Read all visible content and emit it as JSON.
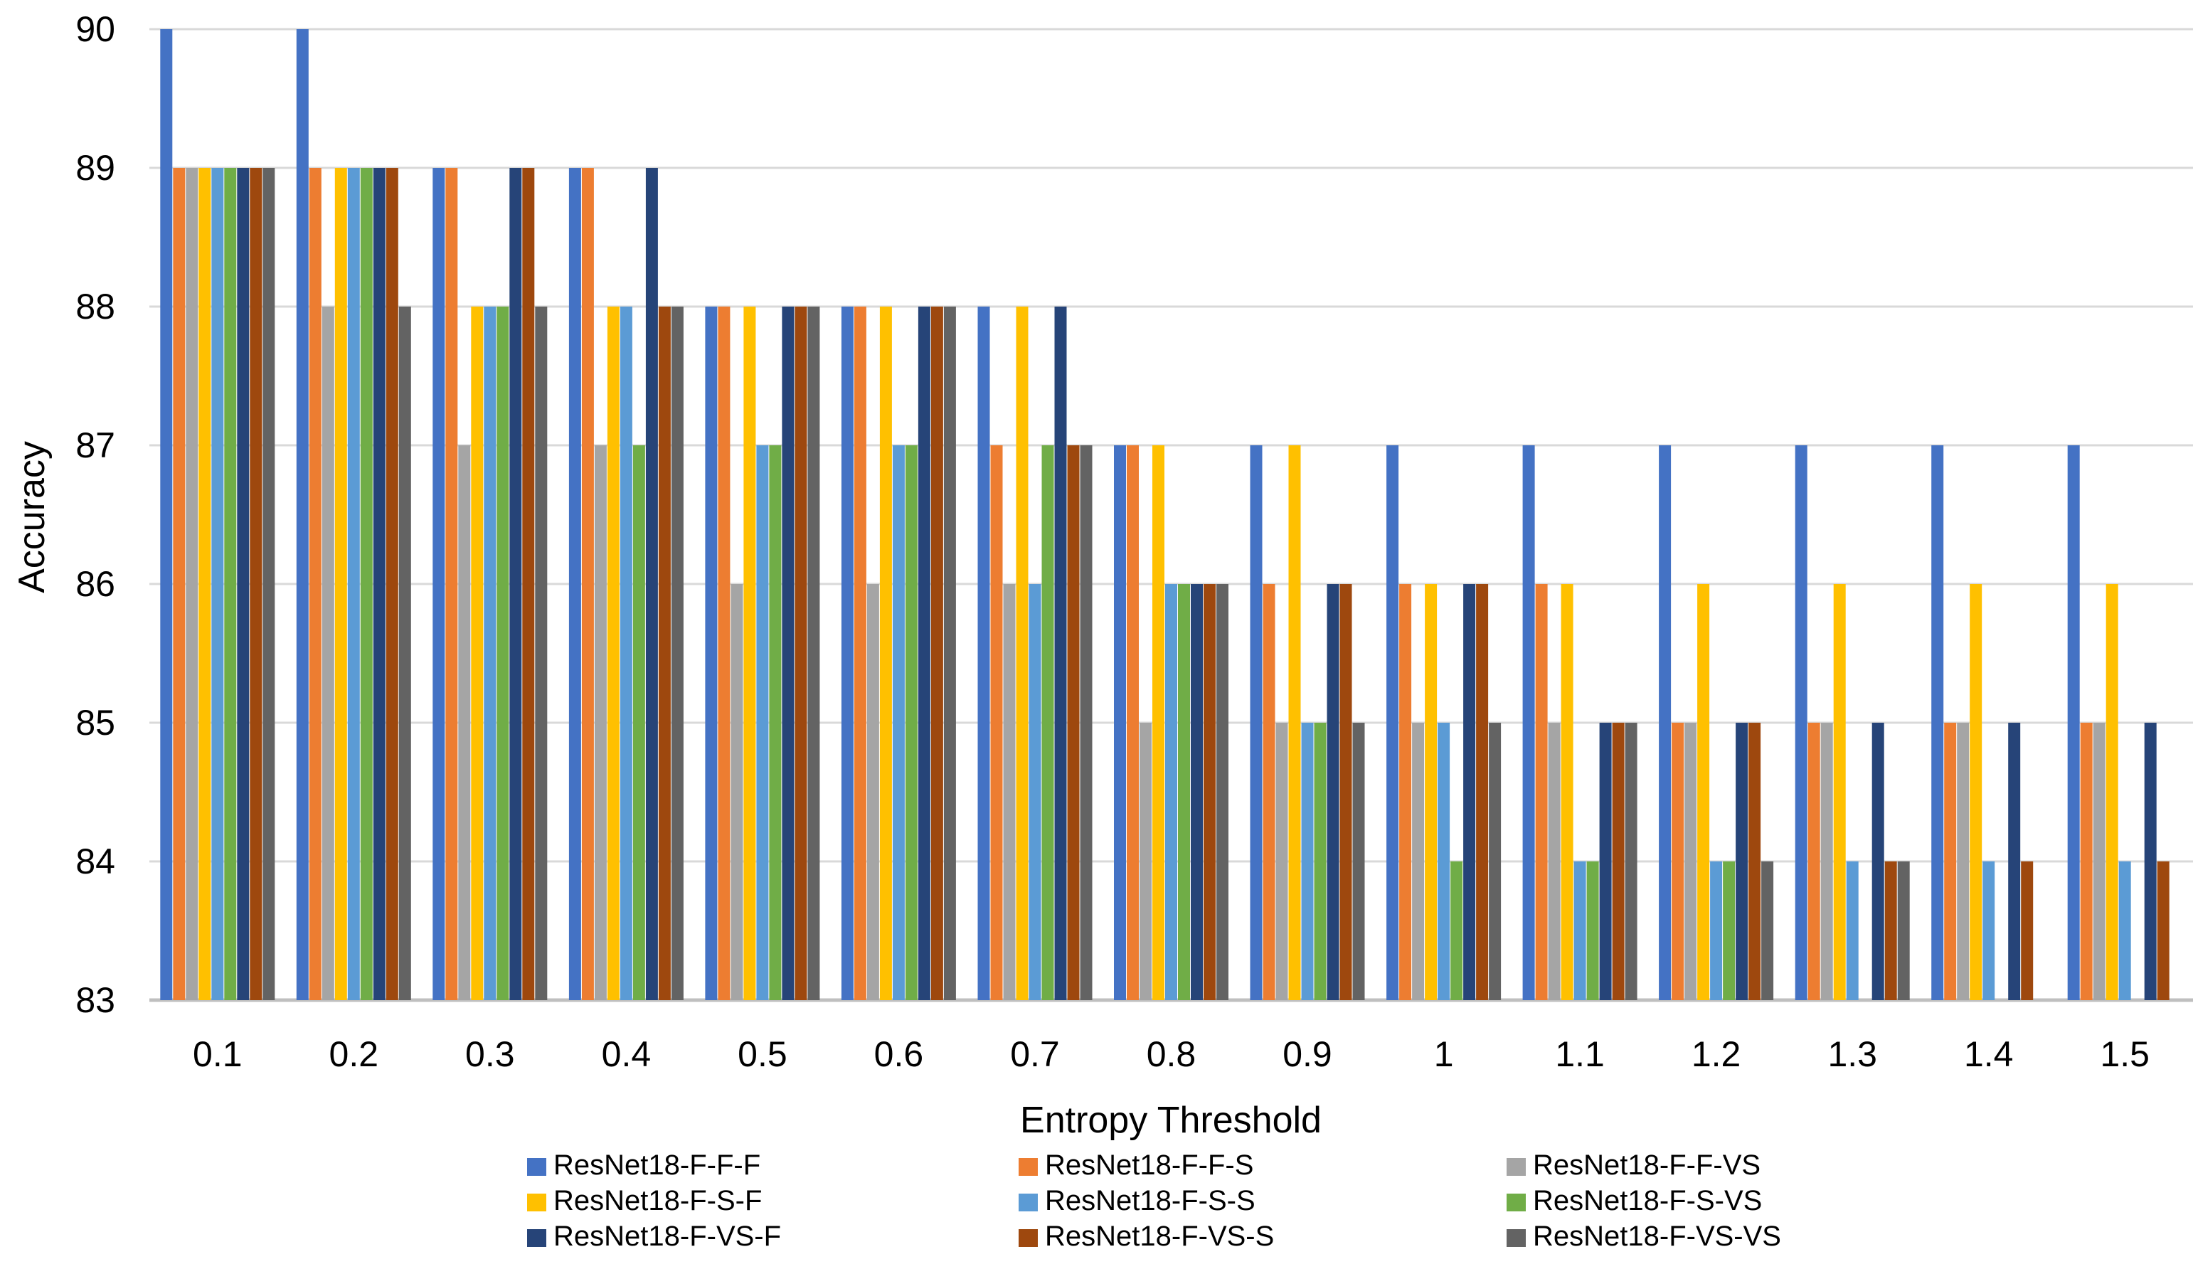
{
  "chart_data": {
    "type": "bar",
    "title": "",
    "xlabel": "Entropy Threshold",
    "ylabel": "Accuracy",
    "categories": [
      "0.1",
      "0.2",
      "0.3",
      "0.4",
      "0.5",
      "0.6",
      "0.7",
      "0.8",
      "0.9",
      "1",
      "1.1",
      "1.2",
      "1.3",
      "1.4",
      "1.5"
    ],
    "ylim": [
      83,
      90
    ],
    "yticks": [
      83,
      84,
      85,
      86,
      87,
      88,
      89,
      90
    ],
    "grid": true,
    "legend_position": "bottom",
    "gridline_color": "#D9D9D9",
    "axisline_color": "#BFBFBF",
    "series": [
      {
        "name": "ResNet18-F-F-F",
        "color": "#4472C4",
        "values": [
          90,
          90,
          89,
          89,
          88,
          88,
          88,
          87,
          87,
          87,
          87,
          87,
          87,
          87,
          87
        ]
      },
      {
        "name": "ResNet18-F-F-S",
        "color": "#ED7D31",
        "values": [
          89,
          89,
          89,
          89,
          88,
          88,
          87,
          87,
          86,
          86,
          86,
          85,
          85,
          85,
          85
        ]
      },
      {
        "name": "ResNet18-F-F-VS",
        "color": "#A5A5A5",
        "values": [
          89,
          88,
          87,
          87,
          86,
          86,
          86,
          85,
          85,
          85,
          85,
          85,
          85,
          85,
          85
        ]
      },
      {
        "name": "ResNet18-F-S-F",
        "color": "#FFC000",
        "values": [
          89,
          89,
          88,
          88,
          88,
          88,
          88,
          87,
          87,
          86,
          86,
          86,
          86,
          86,
          86
        ]
      },
      {
        "name": "ResNet18-F-S-S",
        "color": "#5B9BD5",
        "values": [
          89,
          89,
          88,
          88,
          87,
          87,
          86,
          86,
          85,
          85,
          84,
          84,
          84,
          84,
          84
        ]
      },
      {
        "name": "ResNet18-F-S-VS",
        "color": "#70AD47",
        "values": [
          89,
          89,
          88,
          87,
          87,
          87,
          87,
          86,
          85,
          84,
          84,
          84,
          83,
          83,
          83
        ]
      },
      {
        "name": "ResNet18-F-VS-F",
        "color": "#264478",
        "values": [
          89,
          89,
          89,
          89,
          88,
          88,
          88,
          86,
          86,
          86,
          85,
          85,
          85,
          85,
          85
        ]
      },
      {
        "name": "ResNet18-F-VS-S",
        "color": "#9E480E",
        "values": [
          89,
          89,
          89,
          88,
          88,
          88,
          87,
          86,
          86,
          86,
          85,
          85,
          84,
          84,
          84
        ]
      },
      {
        "name": "ResNet18-F-VS-VS",
        "color": "#636363",
        "values": [
          89,
          88,
          88,
          88,
          88,
          88,
          87,
          86,
          85,
          85,
          85,
          84,
          84,
          83,
          83
        ]
      }
    ]
  }
}
